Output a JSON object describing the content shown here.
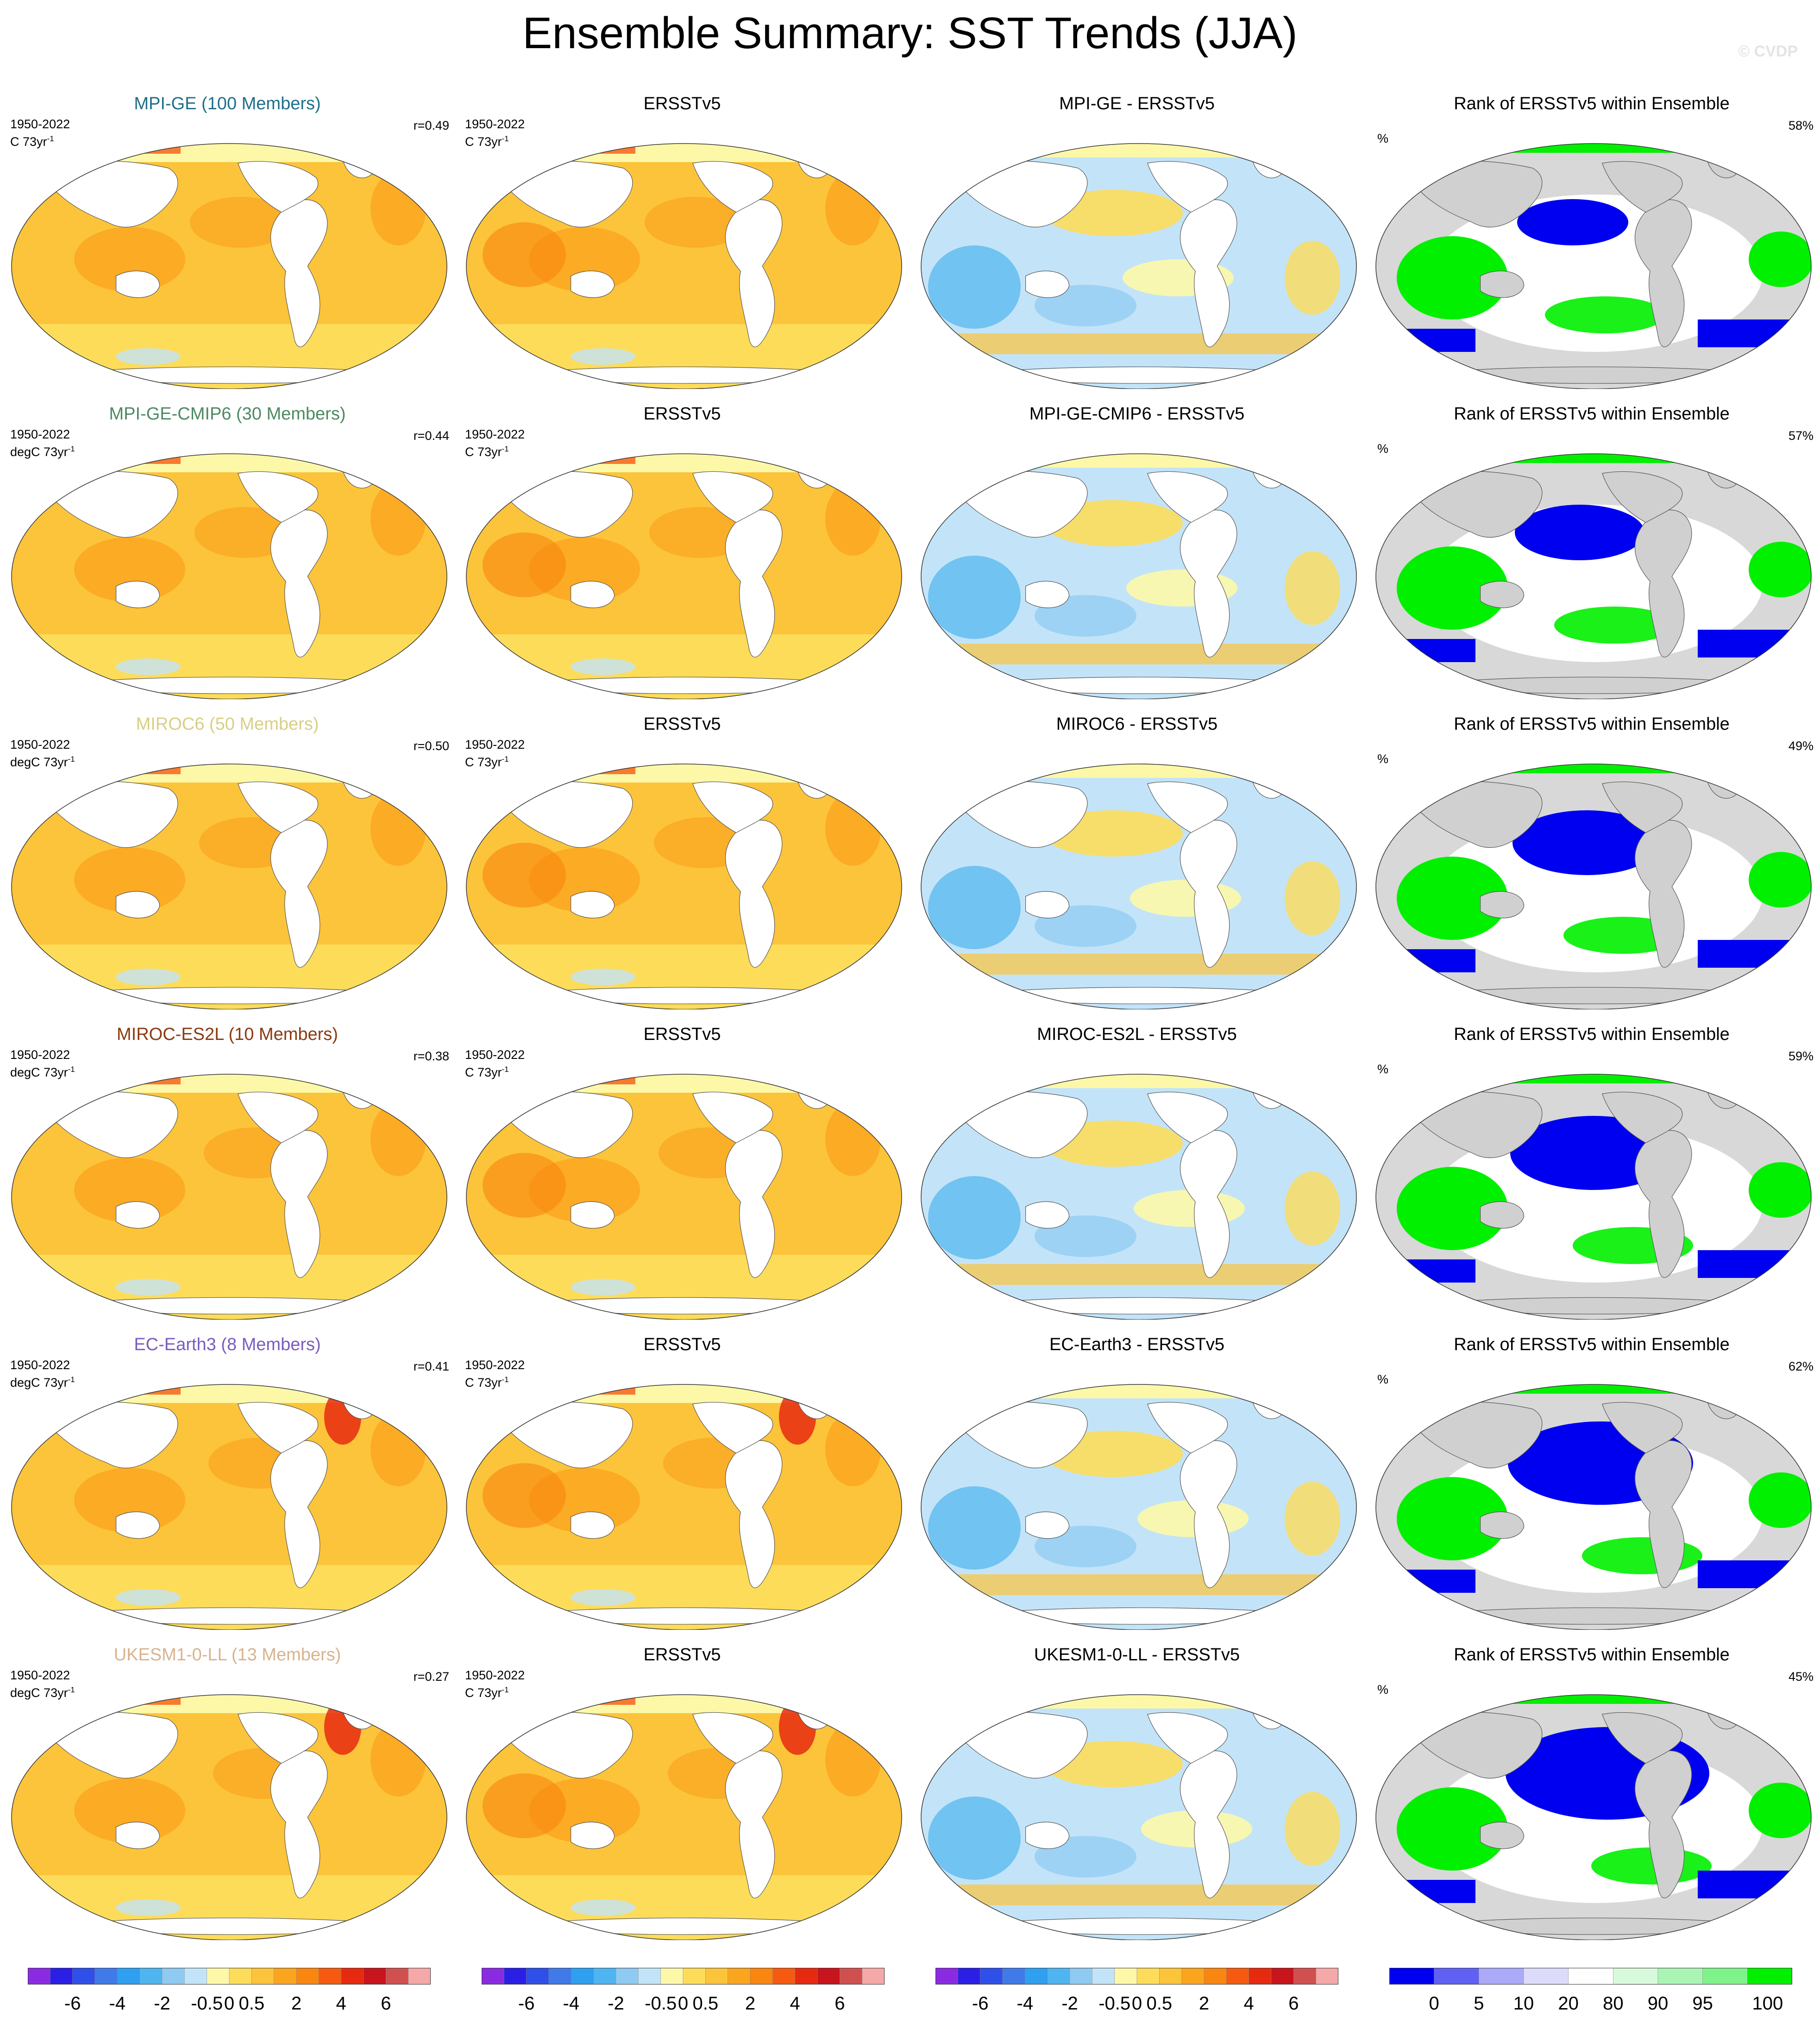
{
  "page_title": "Ensemble Summary: SST Trends (JJA)",
  "watermark": "© CVDP",
  "observation_name": "ERSSTv5",
  "period": "1950-2022",
  "rank_title": "Rank of ERSSTv5 within Ensemble",
  "rank_unit": "%",
  "rows": [
    {
      "model": "MPI-GE (100 Members)",
      "model_color": "#1f6f8b",
      "diff_title": "MPI-GE - ERSSTv5",
      "units_model": "C 73yr",
      "units_obs": "C 73yr",
      "r": "r=0.49",
      "rank_pct": "58%"
    },
    {
      "model": "MPI-GE-CMIP6 (30 Members)",
      "model_color": "#4d8a62",
      "diff_title": "MPI-GE-CMIP6 - ERSSTv5",
      "units_model": "degC 73yr",
      "units_obs": "C 73yr",
      "r": "r=0.44",
      "rank_pct": "57%"
    },
    {
      "model": "MIROC6 (50 Members)",
      "model_color": "#d8cf86",
      "diff_title": "MIROC6 - ERSSTv5",
      "units_model": "degC 73yr",
      "units_obs": "C 73yr",
      "r": "r=0.50",
      "rank_pct": "49%"
    },
    {
      "model": "MIROC-ES2L (10 Members)",
      "model_color": "#8b3a12",
      "diff_title": "MIROC-ES2L - ERSSTv5",
      "units_model": "degC 73yr",
      "units_obs": "C 73yr",
      "r": "r=0.38",
      "rank_pct": "59%"
    },
    {
      "model": "EC-Earth3 (8 Members)",
      "model_color": "#7b5cc0",
      "diff_title": "EC-Earth3 - ERSSTv5",
      "units_model": "degC 73yr",
      "units_obs": "C 73yr",
      "r": "r=0.41",
      "rank_pct": "62%"
    },
    {
      "model": "UKESM1-0-LL (13 Members)",
      "model_color": "#d7b48e",
      "diff_title": "UKESM1-0-LL - ERSSTv5",
      "units_model": "degC 73yr",
      "units_obs": "C 73yr",
      "r": "r=0.27",
      "rank_pct": "45%"
    }
  ],
  "colorbars": {
    "trend_ticks": [
      "-6",
      "-4",
      "-2",
      "-0.5",
      "0",
      "0.5",
      "2",
      "4",
      "6"
    ],
    "trend_colors": [
      "#8a2be2",
      "#2b1fe6",
      "#2f50e8",
      "#3f7ae8",
      "#2f9fef",
      "#4fb5f0",
      "#8fcaf2",
      "#c3e4f8",
      "#fdf8a8",
      "#fddc5a",
      "#fcc43a",
      "#fba51f",
      "#f9860f",
      "#f65a10",
      "#e62a10",
      "#c8141c",
      "#d05050",
      "#f5a8a8"
    ],
    "rank_ticks": [
      "0",
      "5",
      "10",
      "20",
      "80",
      "90",
      "95",
      "100"
    ],
    "rank_colors": [
      "#0000f0",
      "#6060f4",
      "#aaaaf8",
      "#dcdcfa",
      "#ffffff",
      "#d8fadc",
      "#aaf5b4",
      "#7ef38a",
      "#00f000"
    ]
  },
  "chart_data": {
    "type": "heatmap",
    "layout": "6 rows x 4 columns of global maps",
    "columns": [
      "model ensemble mean trend",
      "ERSSTv5 trend",
      "model minus ERSSTv5",
      "rank of ERSSTv5 within ensemble"
    ],
    "pattern_correlation": [
      0.49,
      0.44,
      0.5,
      0.38,
      0.41,
      0.27
    ],
    "rank_percent": [
      58,
      57,
      49,
      59,
      62,
      45
    ]
  }
}
